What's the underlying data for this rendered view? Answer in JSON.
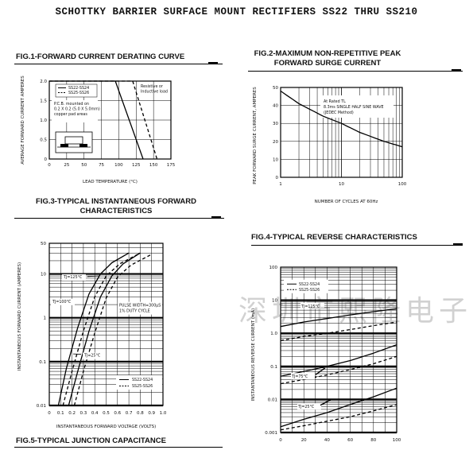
{
  "page": {
    "title": "SCHOTTKY BARRIER SURFACE MOUNT RECTIFIERS SS22 THRU SS210",
    "watermark": "深圳市熙隆电子有限公司",
    "fig5_title": "FIG.5-TYPICAL JUNCTION CAPACITANCE"
  },
  "chart_data": [
    {
      "id": "fig1",
      "type": "line",
      "title": "FIG.1-FORWARD CURRENT DERATING CURVE",
      "xlabel": "LEAD TEMPERATURE (°C)",
      "ylabel": "AVERAGE FORWARD CURRENT AMPERES",
      "xlim": [
        0,
        175
      ],
      "ylim": [
        0,
        2.0
      ],
      "x_ticks": [
        "0",
        "25",
        "50",
        "75",
        "100",
        "125",
        "150",
        "175"
      ],
      "y_ticks": [
        "0",
        "0.5",
        "1.0",
        "1.5",
        "2.0"
      ],
      "series": [
        {
          "name": "SS22-SS24",
          "style": "solid",
          "x": [
            0,
            95,
            135
          ],
          "y": [
            2.0,
            2.0,
            0
          ]
        },
        {
          "name": "SS25-SS26",
          "style": "dashed",
          "x": [
            0,
            120,
            155
          ],
          "y": [
            2.0,
            2.0,
            0
          ]
        }
      ],
      "annotations": [
        "P.C.B. mounted on",
        "0.2 X 0.2 (5.0 X 5.0mm)",
        "copper pad areas",
        "Resistive or",
        "Inductive load"
      ]
    },
    {
      "id": "fig2",
      "type": "line",
      "title": "FIG.2-MAXIMUM NON-REPETITIVE PEAK FORWARD SURGE CURRENT",
      "xlabel": "NUMBER OF CYCLES AT 60Hz",
      "ylabel": "PEAK FORWARD SURGE CURRENT, AMPERES",
      "x_scale": "log",
      "xlim": [
        1,
        100
      ],
      "ylim": [
        0,
        50
      ],
      "x_ticks": [
        "1",
        "10",
        "100"
      ],
      "y_ticks": [
        "0",
        "10",
        "20",
        "30",
        "40",
        "50"
      ],
      "series": [
        {
          "name": "",
          "style": "solid",
          "x": [
            1,
            2,
            5,
            10,
            20,
            50,
            100
          ],
          "y": [
            48,
            41,
            34,
            30,
            25,
            20,
            17
          ]
        }
      ],
      "annotations": [
        "At Rated TL",
        "8.3ms SINGLE HALF SINE WAVE",
        "(JEDEC Method)"
      ]
    },
    {
      "id": "fig3",
      "type": "line",
      "title": "FIG.3-TYPICAL INSTANTANEOUS FORWARD CHARACTERISTICS",
      "xlabel": "INSTANTANEOUS FORWARD VOLTAGE (VOLTS)",
      "ylabel": "INSTANTANEOUS FORWARD CURRENT (AMPERES)",
      "y_scale": "log",
      "xlim": [
        0,
        1.0
      ],
      "ylim": [
        0.01,
        50
      ],
      "x_ticks": [
        "0",
        "0.2",
        "0.4",
        "0.6",
        "0.8",
        "1.0"
      ],
      "x_ticks_extra": [
        "0.1",
        "0.3",
        "0.5",
        "0.7",
        "0.9"
      ],
      "y_ticks": [
        "0.01",
        "0.1",
        "1",
        "10",
        "50"
      ],
      "series": [
        {
          "name": "SS22-SS24 TJ=125°C",
          "style": "solid",
          "x": [
            0.08,
            0.15,
            0.25,
            0.35,
            0.45,
            0.55,
            0.7
          ],
          "y": [
            0.01,
            0.07,
            0.6,
            3.5,
            10,
            18,
            30
          ]
        },
        {
          "name": "SS22-SS24 TJ=25°C",
          "style": "solid",
          "x": [
            0.17,
            0.25,
            0.35,
            0.45,
            0.55,
            0.65,
            0.8
          ],
          "y": [
            0.01,
            0.06,
            0.5,
            3,
            9,
            17,
            30
          ]
        },
        {
          "name": "SS25-SS26 TJ=125°C",
          "style": "dashed",
          "x": [
            0.12,
            0.2,
            0.3,
            0.4,
            0.5,
            0.62,
            0.8
          ],
          "y": [
            0.01,
            0.06,
            0.5,
            3,
            9,
            17,
            30
          ]
        },
        {
          "name": "SS25-SS26 TJ=25°C",
          "style": "dashed",
          "x": [
            0.22,
            0.3,
            0.4,
            0.5,
            0.6,
            0.72,
            0.9
          ],
          "y": [
            0.01,
            0.06,
            0.45,
            2.8,
            8.5,
            16,
            28
          ]
        }
      ],
      "annotations": [
        "TJ=125°C",
        "TJ=100°C",
        "TJ=25°C",
        "PULSE WIDTH=300μS",
        "1% DUTY CYCLE"
      ],
      "legend": [
        "SS22-SS24",
        "SS25-SS26"
      ]
    },
    {
      "id": "fig4",
      "type": "line",
      "title": "FIG.4-TYPICAL REVERSE CHARACTERISTICS",
      "xlabel": "",
      "ylabel": "INSTANTANEOUS REVERSE CURRENT (mA)",
      "y_scale": "log",
      "xlim": [
        0,
        100
      ],
      "ylim": [
        0.001,
        100
      ],
      "x_ticks": [
        "0",
        "20",
        "40",
        "60",
        "80",
        "100"
      ],
      "y_ticks": [
        "0.001",
        "0.01",
        "0.1",
        "1.0",
        "10",
        "100"
      ],
      "series": [
        {
          "name": "SS22-SS24 TJ=125°C",
          "style": "solid",
          "x": [
            0,
            20,
            40,
            60,
            80,
            100
          ],
          "y": [
            1.6,
            2.2,
            2.8,
            3.6,
            4.5,
            5.5
          ]
        },
        {
          "name": "SS25-SS26 TJ=125°C",
          "style": "dashed",
          "x": [
            0,
            20,
            40,
            60,
            80,
            100
          ],
          "y": [
            0.6,
            0.8,
            1.0,
            1.3,
            1.7,
            2.2
          ]
        },
        {
          "name": "SS22-SS24 TJ=75°C",
          "style": "solid",
          "x": [
            0,
            20,
            40,
            60,
            80,
            100
          ],
          "y": [
            0.05,
            0.07,
            0.1,
            0.15,
            0.25,
            0.45
          ]
        },
        {
          "name": "SS25-SS26 TJ=75°C",
          "style": "dashed",
          "x": [
            0,
            20,
            40,
            60,
            80,
            100
          ],
          "y": [
            0.03,
            0.04,
            0.055,
            0.08,
            0.12,
            0.2
          ]
        },
        {
          "name": "SS22-SS24 TJ=25°C",
          "style": "solid",
          "x": [
            0,
            20,
            40,
            60,
            80,
            100
          ],
          "y": [
            0.0015,
            0.0025,
            0.004,
            0.007,
            0.012,
            0.022
          ]
        },
        {
          "name": "SS25-SS26 TJ=25°C",
          "style": "dashed",
          "x": [
            0,
            20,
            40,
            60,
            80,
            100
          ],
          "y": [
            0.0012,
            0.0016,
            0.0022,
            0.003,
            0.0045,
            0.007
          ]
        }
      ],
      "annotations": [
        "TJ=125°C",
        "TJ=75°C",
        "TJ=25°C"
      ],
      "legend": [
        "SS22-SS24",
        "SS25-SS26"
      ]
    }
  ]
}
